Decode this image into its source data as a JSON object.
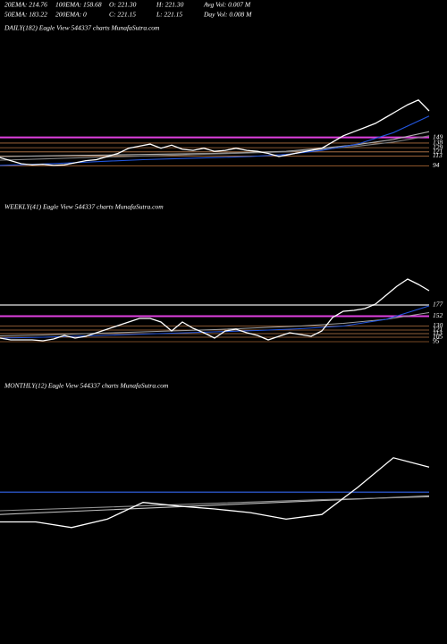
{
  "header": {
    "row1": [
      "20EMA: 214.76",
      "100EMA: 158.68",
      "O: 221.30",
      "H: 221.30",
      "Avg Vol: 0.007 M"
    ],
    "row2": [
      "50EMA: 183.22",
      "200EMA: 0",
      "C: 221.15",
      "L: 221.15",
      "Day Vol: 0.008 M"
    ]
  },
  "chart_data": [
    {
      "type": "line",
      "title": "DAILY(182) Eagle   View   544337 charts MunafaSutra.com",
      "ylim": [
        43,
        376
      ],
      "yticks": [
        149,
        138,
        129,
        121,
        113,
        94
      ],
      "level_colors": [
        "#e040e0",
        "#b07040",
        "#b07040",
        "#c08050",
        "#b07040",
        "#a06030"
      ],
      "series": [
        {
          "color": "#b0b0b0",
          "values": [
            112,
            113,
            114,
            115,
            116,
            117,
            118,
            120,
            122,
            128,
            135,
            145,
            160
          ]
        },
        {
          "color": "#808080",
          "values": [
            105,
            107,
            109,
            111,
            113,
            115,
            117,
            119,
            121,
            126,
            132,
            140,
            152
          ]
        },
        {
          "color": "#2255dd",
          "values": [
            95,
            97,
            100,
            103,
            106,
            108,
            110,
            112,
            116,
            124,
            136,
            158,
            190
          ]
        },
        {
          "color": "#ffffff",
          "values": [
            110,
            104,
            98,
            96,
            97,
            95,
            96,
            100,
            104,
            106,
            112,
            118,
            128,
            132,
            136,
            128,
            134,
            126,
            124,
            128,
            122,
            124,
            128,
            124,
            122,
            118,
            112,
            116,
            120,
            124,
            128,
            140,
            152,
            160,
            168,
            176,
            188,
            200,
            212,
            221,
            200
          ]
        }
      ]
    },
    {
      "type": "line",
      "title": "WEEKLY(41) Eagle   View   544337 charts MunafaSutra.com",
      "ylim": [
        19,
        379
      ],
      "yticks": [
        177,
        152,
        130,
        121,
        113,
        105,
        95
      ],
      "level_colors": [
        "#909090",
        "#e040e0",
        "#b07040",
        "#b07040",
        "#c08050",
        "#b07040",
        "#a06030"
      ],
      "series": [
        {
          "color": "#a0a0a0",
          "values": [
            108,
            110,
            113,
            116,
            119,
            122,
            126,
            130,
            136,
            145,
            160
          ]
        },
        {
          "color": "#2255dd",
          "values": [
            103,
            105,
            108,
            111,
            114,
            117,
            120,
            124,
            130,
            145,
            175
          ]
        },
        {
          "color": "#ffffff",
          "values": [
            103,
            99,
            99,
            99,
            97,
            101,
            109,
            103,
            107,
            115,
            123,
            131,
            139,
            147,
            147,
            139,
            119,
            139,
            125,
            115,
            103,
            119,
            123,
            115,
            109,
            99,
            107,
            115,
            111,
            107,
            119,
            149,
            163,
            165,
            169,
            179,
            199,
            219,
            235,
            223,
            209
          ]
        }
      ]
    },
    {
      "type": "line",
      "title": "MONTHLY(12) Eagle   View   544337 charts MunafaSutra.com",
      "ylim": [
        50,
        300
      ],
      "series": [
        {
          "color": "#3366ee",
          "values": [
            194,
            194
          ]
        },
        {
          "color": "#c0c0c0",
          "values": [
            170,
            175,
            180,
            185,
            190
          ]
        },
        {
          "color": "#909090",
          "values": [
            174,
            178,
            182,
            186,
            189
          ]
        },
        {
          "color": "#ffffff",
          "values": [
            162,
            162,
            156,
            165,
            183,
            179,
            176,
            172,
            165,
            170,
            199,
            231,
            221
          ]
        }
      ]
    }
  ]
}
